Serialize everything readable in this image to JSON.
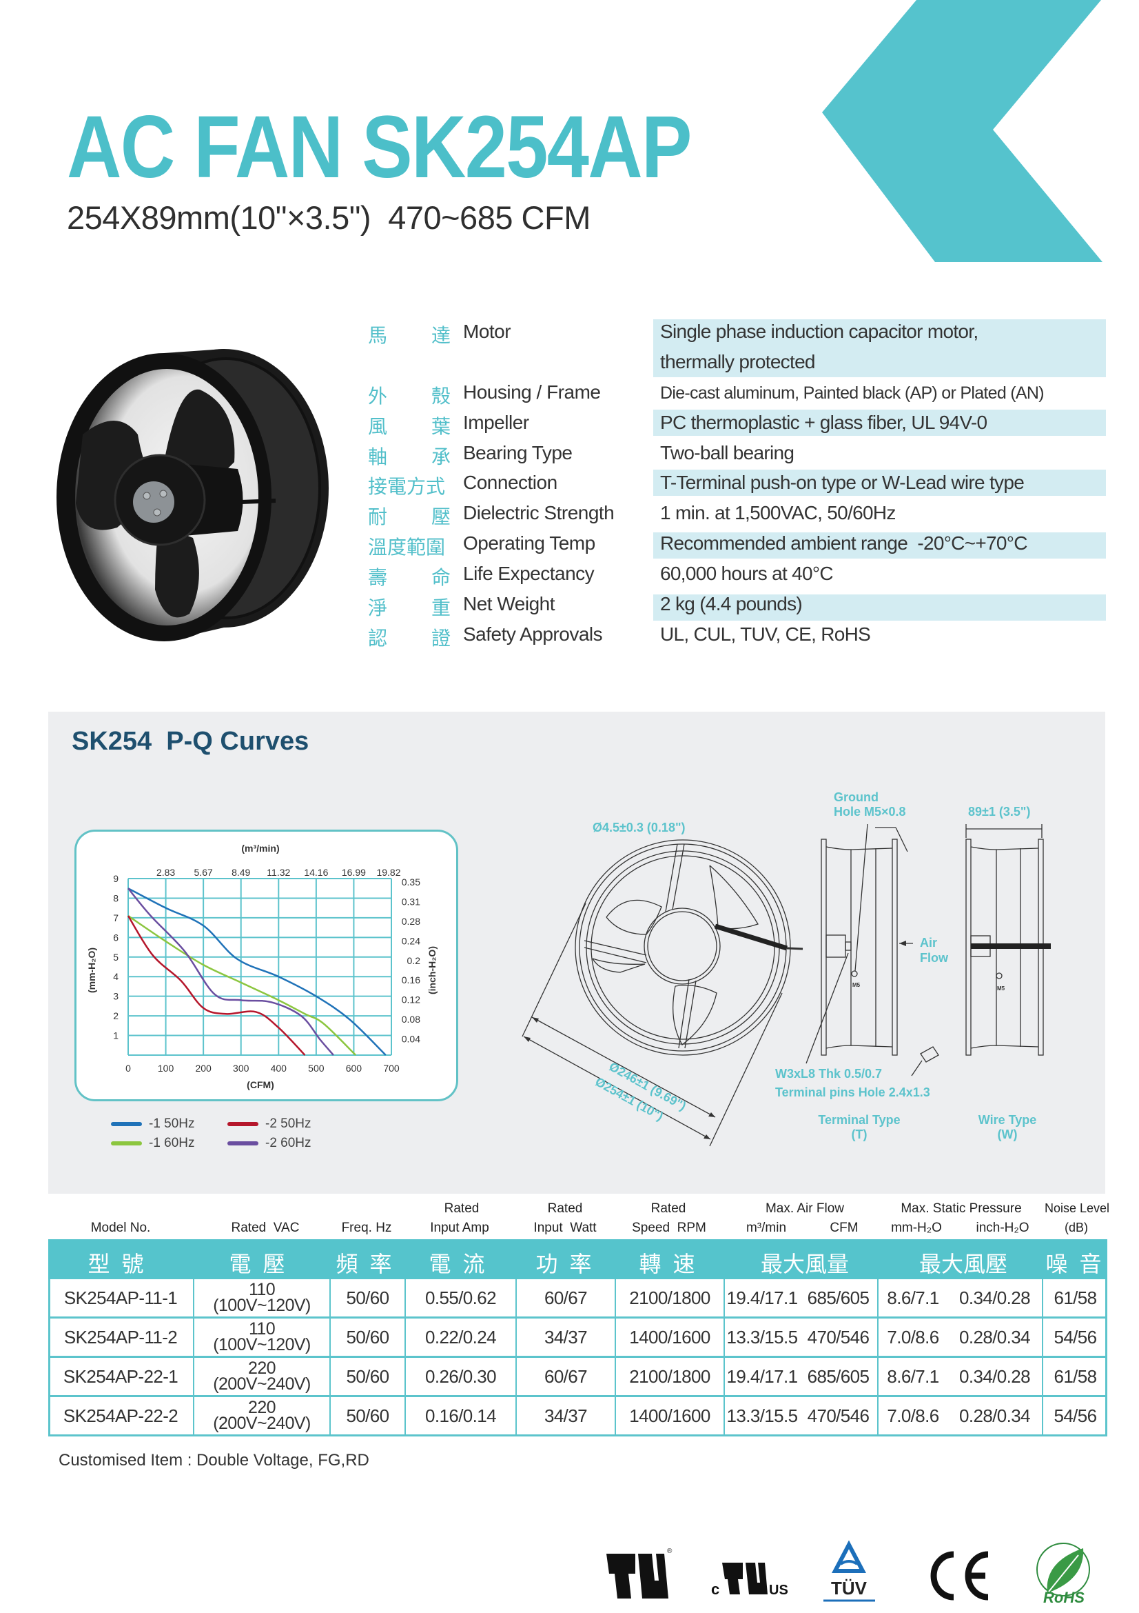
{
  "header": {
    "title": "AC FAN SK254AP",
    "subtitle": "254X89mm(10\"×3.5\")  470~685 CFM",
    "accent_color": "#4cbfc9"
  },
  "specs": [
    {
      "zh": [
        "馬",
        "達"
      ],
      "en": "Motor",
      "value_lines": [
        "Single phase induction capacitor motor,",
        "thermally protected"
      ],
      "shaded": true
    },
    {
      "zh": [
        "外",
        "殼"
      ],
      "en": "Housing / Frame",
      "value": "Die-cast aluminum, Painted black (AP) or Plated (AN)",
      "shaded": false
    },
    {
      "zh": [
        "風",
        "葉"
      ],
      "en": "Impeller",
      "value": "PC thermoplastic + glass fiber, UL 94V-0",
      "shaded": true
    },
    {
      "zh": [
        "軸",
        "承"
      ],
      "en": "Bearing Type",
      "value": "Two-ball bearing",
      "shaded": false
    },
    {
      "zh": [
        "接電方式"
      ],
      "en": "Connection",
      "value": "T-Terminal push-on type or W-Lead wire type",
      "shaded": true
    },
    {
      "zh": [
        "耐",
        "壓"
      ],
      "en": "Dielectric Strength",
      "value": "1 min. at 1,500VAC, 50/60Hz",
      "shaded": false
    },
    {
      "zh": [
        "溫度範圍"
      ],
      "en": "Operating Temp",
      "value": "Recommended ambient range  -20°C~+70°C",
      "shaded": true
    },
    {
      "zh": [
        "壽",
        "命"
      ],
      "en": "Life Expectancy",
      "value": "60,000 hours at 40°C",
      "shaded": false
    },
    {
      "zh": [
        "淨",
        "重"
      ],
      "en": "Net Weight",
      "value": "2 kg (4.4 pounds)",
      "shaded": true
    },
    {
      "zh": [
        "認",
        "證"
      ],
      "en": "Safety Approvals",
      "value": "UL, CUL, TUV, CE, RoHS",
      "shaded": false
    }
  ],
  "pq_section": {
    "title": "SK254  P-Q Curves"
  },
  "chart_data": {
    "type": "line",
    "title": "",
    "xlabel": "(CFM)",
    "x2label": "(m³/min)",
    "ylabel": "(mm-H₂O)",
    "y2label": "(inch-H₂O)",
    "xlim": [
      0,
      700
    ],
    "ylim": [
      0,
      9
    ],
    "grid": true,
    "x_ticks": [
      "0",
      "100",
      "200",
      "300",
      "400",
      "500",
      "600",
      "700"
    ],
    "x_tick_values": [
      0,
      100,
      200,
      300,
      400,
      500,
      600,
      700
    ],
    "x2_ticks": [
      "2.83",
      "5.67",
      "8.49",
      "11.32",
      "14.16",
      "16.99",
      "19.82"
    ],
    "x2_tick_values": [
      100,
      200,
      300,
      400,
      500,
      600,
      700
    ],
    "y_ticks": [
      "1",
      "2",
      "3",
      "4",
      "5",
      "6",
      "7",
      "8",
      "9"
    ],
    "y_tick_values": [
      1,
      2,
      3,
      4,
      5,
      6,
      7,
      8,
      9
    ],
    "y2_ticks": [
      "0.04",
      "0.08",
      "0.12",
      "0.16",
      "0.2",
      "0.24",
      "0.28",
      "0.31",
      "0.35"
    ],
    "legend_position": "bottom",
    "series": [
      {
        "name": "-1 50Hz",
        "color": "#1f72b8",
        "x": [
          0,
          100,
          200,
          290,
          400,
          500,
          590,
          685
        ],
        "y": [
          8.5,
          7.5,
          6.6,
          4.9,
          4.0,
          3.0,
          1.8,
          0
        ]
      },
      {
        "name": "-1 60Hz",
        "color": "#8cc63f",
        "x": [
          0,
          100,
          200,
          300,
          400,
          470,
          520,
          605
        ],
        "y": [
          7.1,
          5.8,
          4.6,
          3.7,
          2.8,
          2.1,
          1.6,
          0
        ]
      },
      {
        "name": "-2 50Hz",
        "color": "#b5162b",
        "x": [
          0,
          65,
          140,
          200,
          260,
          340,
          400,
          470
        ],
        "y": [
          7.1,
          5.1,
          3.8,
          2.4,
          2.1,
          2.2,
          1.4,
          0
        ]
      },
      {
        "name": "-2 60Hz",
        "color": "#6a4ea0",
        "x": [
          0,
          60,
          150,
          230,
          300,
          380,
          460,
          510,
          546
        ],
        "y": [
          8.5,
          7.1,
          5.3,
          3.1,
          2.8,
          2.7,
          2.0,
          0.8,
          0
        ]
      }
    ]
  },
  "drawing": {
    "hole_label": "Ø4.5±0.3 (0.18\")",
    "ground_label_1": "Ground",
    "ground_label_2": "Hole M5×0.8",
    "depth_label": "89±1 (3.5\")",
    "airflow_label_1": "Air",
    "airflow_label_2": "Flow",
    "dia_inner_label": "Ø246±1 (9.69\")",
    "dia_outer_label": "Ø254±1 (10\")",
    "terminal_spec_1": "W3xL8 Thk 0.5/0.7",
    "terminal_spec_2": "Terminal pins Hole 2.4x1.3",
    "terminal_type_1": "Terminal Type",
    "terminal_type_2": "(T)",
    "wire_type_1": "Wire Type",
    "wire_type_2": "(W)",
    "m5_label": "M5"
  },
  "table": {
    "header_line1": {
      "amp": "Rated",
      "watt": "Rated",
      "speed": "Rated",
      "airflow": "Max. Air Flow",
      "pressure": "Max. Static Pressure",
      "noise": "Noise Level"
    },
    "header_line2": {
      "model": "Model No.",
      "vac": "Rated  VAC",
      "freq": "Freq. Hz",
      "amp": "Input Amp",
      "watt": "Input  Watt",
      "speed": "Speed  RPM",
      "m3": "m³/min",
      "cfm": "CFM",
      "mm": "mm-H₂O",
      "inch": "inch-H₂O",
      "db": "(dB)"
    },
    "header_zh": {
      "model": "型 號",
      "vac": "電 壓",
      "freq": "頻 率",
      "amp": "電 流",
      "watt": "功 率",
      "speed": "轉 速",
      "airflow": "最大風量",
      "pressure": "最大風壓",
      "noise": "噪 音"
    },
    "rows": [
      {
        "model": "SK254AP-11-1",
        "vac": [
          "110",
          "(100V~120V)"
        ],
        "freq": "50/60",
        "amp": "0.55/0.62",
        "watt": "60/67",
        "rpm": "2100/1800",
        "m3": "19.4/17.1",
        "cfm": "685/605",
        "mm": "8.6/7.1",
        "inch": "0.34/0.28",
        "db": "61/58"
      },
      {
        "model": "SK254AP-11-2",
        "vac": [
          "110",
          "(100V~120V)"
        ],
        "freq": "50/60",
        "amp": "0.22/0.24",
        "watt": "34/37",
        "rpm": "1400/1600",
        "m3": "13.3/15.5",
        "cfm": "470/546",
        "mm": "7.0/8.6",
        "inch": "0.28/0.34",
        "db": "54/56"
      },
      {
        "model": "SK254AP-22-1",
        "vac": [
          "220",
          "(200V~240V)"
        ],
        "freq": "50/60",
        "amp": "0.26/0.30",
        "watt": "60/67",
        "rpm": "2100/1800",
        "m3": "19.4/17.1",
        "cfm": "685/605",
        "mm": "8.6/7.1",
        "inch": "0.34/0.28",
        "db": "61/58"
      },
      {
        "model": "SK254AP-22-2",
        "vac": [
          "220",
          "(200V~240V)"
        ],
        "freq": "50/60",
        "amp": "0.16/0.14",
        "watt": "34/37",
        "rpm": "1400/1600",
        "m3": "13.3/15.5",
        "cfm": "470/546",
        "mm": "7.0/8.6",
        "inch": "0.28/0.34",
        "db": "54/56"
      }
    ],
    "band_color": "#55c4cc"
  },
  "footer": {
    "custom_note": "Customised Item : Double Voltage, FG,RD",
    "logos": {
      "ul": "UL",
      "cul_c": "c",
      "cul_us": "US",
      "tuv": "TÜV",
      "ce": "CE",
      "rohs": "RoHS"
    }
  }
}
